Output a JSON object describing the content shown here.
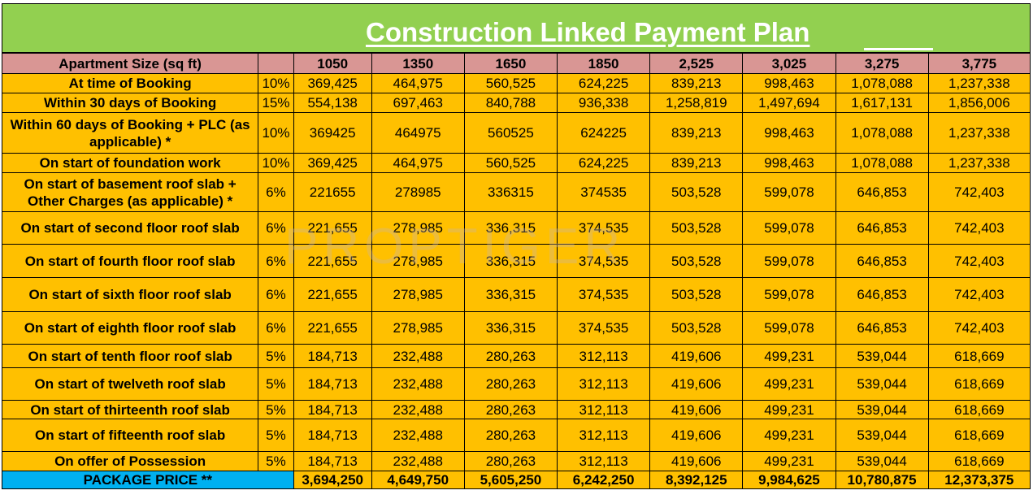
{
  "title": "Construction Linked Payment Plan",
  "watermark": "PROPTIGER",
  "header": {
    "label": "Apartment Size (sq ft)",
    "sizes": [
      "1050",
      "1350",
      "1650",
      "1850",
      "2,525",
      "3,025",
      "3,275",
      "3,775"
    ]
  },
  "rows": [
    {
      "label": "At time of Booking",
      "pct": "10%",
      "values": [
        "369,425",
        "464,975",
        "560,525",
        "624,225",
        "839,213",
        "998,463",
        "1,078,088",
        "1,237,338"
      ]
    },
    {
      "label": "Within 30 days of Booking",
      "pct": "15%",
      "values": [
        "554,138",
        "697,463",
        "840,788",
        "936,338",
        "1,258,819",
        "1,497,694",
        "1,617,131",
        "1,856,006"
      ]
    },
    {
      "label": "Within 60 days of Booking + PLC (as applicable) *",
      "pct": "10%",
      "values": [
        "369425",
        "464975",
        "560525",
        "624225",
        "839,213",
        "998,463",
        "1,078,088",
        "1,237,338"
      ]
    },
    {
      "label": "On start of foundation work",
      "pct": "10%",
      "values": [
        "369,425",
        "464,975",
        "560,525",
        "624,225",
        "839,213",
        "998,463",
        "1,078,088",
        "1,237,338"
      ]
    },
    {
      "label": "On start of basement roof slab + Other Charges (as applicable) *",
      "pct": "6%",
      "values": [
        "221655",
        "278985",
        "336315",
        "374535",
        "503,528",
        "599,078",
        "646,853",
        "742,403"
      ]
    },
    {
      "label": "On start of second floor roof slab",
      "pct": "6%",
      "values": [
        "221,655",
        "278,985",
        "336,315",
        "374,535",
        "503,528",
        "599,078",
        "646,853",
        "742,403"
      ]
    },
    {
      "label": "On start of fourth floor roof slab",
      "pct": "6%",
      "values": [
        "221,655",
        "278,985",
        "336,315",
        "374,535",
        "503,528",
        "599,078",
        "646,853",
        "742,403"
      ]
    },
    {
      "label": "On start of sixth floor roof slab",
      "pct": "6%",
      "values": [
        "221,655",
        "278,985",
        "336,315",
        "374,535",
        "503,528",
        "599,078",
        "646,853",
        "742,403"
      ]
    },
    {
      "label": "On start of eighth floor roof slab",
      "pct": "6%",
      "values": [
        "221,655",
        "278,985",
        "336,315",
        "374,535",
        "503,528",
        "599,078",
        "646,853",
        "742,403"
      ]
    },
    {
      "label": "On start of tenth floor roof slab",
      "pct": "5%",
      "values": [
        "184,713",
        "232,488",
        "280,263",
        "312,113",
        "419,606",
        "499,231",
        "539,044",
        "618,669"
      ]
    },
    {
      "label": "On start of twelveth roof slab",
      "pct": "5%",
      "values": [
        "184,713",
        "232,488",
        "280,263",
        "312,113",
        "419,606",
        "499,231",
        "539,044",
        "618,669"
      ]
    },
    {
      "label": "On start of thirteenth roof slab",
      "pct": "5%",
      "values": [
        "184,713",
        "232,488",
        "280,263",
        "312,113",
        "419,606",
        "499,231",
        "539,044",
        "618,669"
      ]
    },
    {
      "label": "On start of fifteenth roof slab",
      "pct": "5%",
      "values": [
        "184,713",
        "232,488",
        "280,263",
        "312,113",
        "419,606",
        "499,231",
        "539,044",
        "618,669"
      ]
    },
    {
      "label": "On offer of Possession",
      "pct": "5%",
      "values": [
        "184,713",
        "232,488",
        "280,263",
        "312,113",
        "419,606",
        "499,231",
        "539,044",
        "618,669"
      ]
    }
  ],
  "total": {
    "label": "PACKAGE PRICE **",
    "values": [
      "3,694,250",
      "4,649,750",
      "5,605,250",
      "6,242,250",
      "8,392,125",
      "9,984,625",
      "10,780,875",
      "12,373,375"
    ]
  },
  "colors": {
    "banner": "#92d050",
    "header_row": "#d99694",
    "body": "#ffc000",
    "total_label": "#00b0f0",
    "title_text": "#ffffff"
  }
}
